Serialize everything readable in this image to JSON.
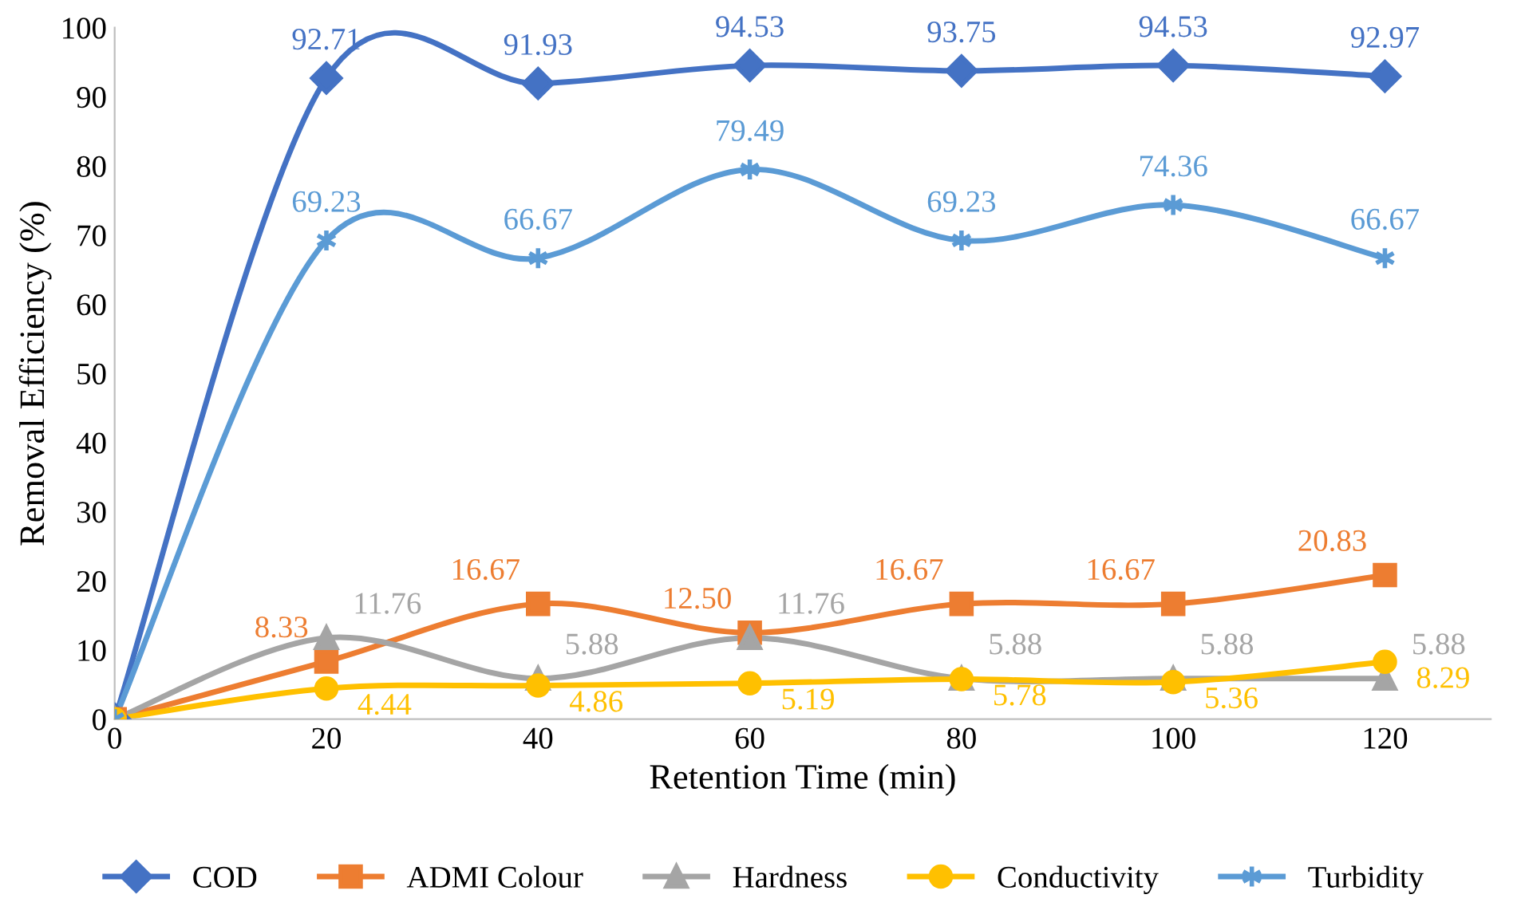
{
  "chart_data": {
    "type": "line",
    "xlabel": "Retention Time (min)",
    "ylabel": "Removal Efficiency (%)",
    "x": [
      0,
      20,
      40,
      60,
      80,
      100,
      120
    ],
    "xlim": [
      0,
      130
    ],
    "xticks": [
      0,
      20,
      40,
      60,
      80,
      100,
      120
    ],
    "ylim": [
      0,
      100
    ],
    "yticks": [
      0,
      10,
      20,
      30,
      40,
      50,
      60,
      70,
      80,
      90,
      100
    ],
    "grid": false,
    "legend": "bottom",
    "line_style": "solid",
    "series": [
      {
        "name": "COD",
        "color": "#4472c4",
        "marker": "diamond",
        "values": [
          0,
          92.71,
          91.93,
          94.53,
          93.75,
          94.53,
          92.97
        ],
        "value_labels": [
          null,
          "92.71",
          "91.93",
          "94.53",
          "93.75",
          "94.53",
          "92.97"
        ]
      },
      {
        "name": "ADMI Colour",
        "color": "#ed7d31",
        "marker": "square",
        "values": [
          0,
          8.33,
          16.67,
          12.5,
          16.67,
          16.67,
          20.83
        ],
        "value_labels": [
          null,
          "8.33",
          "16.67",
          "12.50",
          "16.67",
          "16.67",
          "20.83"
        ]
      },
      {
        "name": "Hardness",
        "color": "#a5a5a5",
        "marker": "triangle",
        "values": [
          0,
          11.76,
          5.88,
          11.76,
          5.88,
          5.88,
          5.88
        ],
        "value_labels": [
          null,
          "11.76",
          "5.88",
          "11.76",
          "5.88",
          "5.88",
          "5.88"
        ]
      },
      {
        "name": "Conductivity",
        "color": "#ffc000",
        "marker": "circle",
        "values": [
          0,
          4.44,
          4.86,
          5.19,
          5.78,
          5.36,
          8.29
        ],
        "value_labels": [
          null,
          "4.44",
          "4.86",
          "5.19",
          "5.78",
          "5.36",
          "8.29"
        ]
      },
      {
        "name": "Turbidity",
        "color": "#5b9bd5",
        "marker": "cross",
        "values": [
          0,
          69.23,
          66.67,
          79.49,
          69.23,
          74.36,
          66.67
        ],
        "value_labels": [
          null,
          "69.23",
          "66.67",
          "79.49",
          "69.23",
          "74.36",
          "66.67"
        ]
      }
    ]
  }
}
